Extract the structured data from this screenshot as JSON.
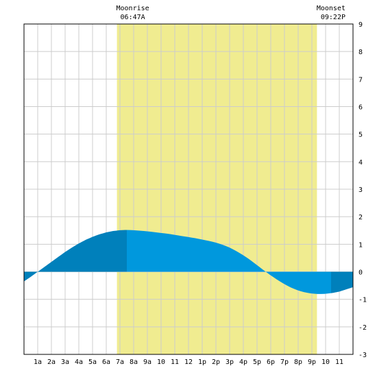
{
  "chart_data": {
    "type": "area",
    "xlabel": "",
    "ylabel": "",
    "x_tick_labels": [
      "1a",
      "2a",
      "3a",
      "4a",
      "5a",
      "6a",
      "7a",
      "8a",
      "9a",
      "10",
      "11",
      "12",
      "1p",
      "2p",
      "3p",
      "4p",
      "5p",
      "6p",
      "7p",
      "8p",
      "9p",
      "10",
      "11"
    ],
    "ylim": [
      -3,
      9
    ],
    "y_ticks": [
      -3,
      -2,
      -1,
      0,
      1,
      2,
      3,
      4,
      5,
      6,
      7,
      8,
      9
    ],
    "grid": true,
    "moon_events": [
      {
        "name": "Moonrise",
        "time": "06:47A",
        "hour": 6.78
      },
      {
        "name": "Moonset",
        "time": "09:22P",
        "hour": 21.37
      }
    ],
    "moon_visible_window": [
      6.78,
      21.37
    ],
    "tide_extremes": [
      {
        "hour": 7.5,
        "height": 1.5,
        "type": "high"
      },
      {
        "hour": 22.4,
        "height": -0.8,
        "type": "low"
      }
    ],
    "series": [
      {
        "x": [
          0,
          0.5,
          1,
          1.5,
          2,
          2.5,
          3,
          3.5,
          4,
          4.5,
          5,
          5.5,
          6,
          6.5,
          7,
          7.5,
          8,
          8.5,
          9,
          9.5,
          10,
          10.5,
          11,
          11.5,
          12,
          12.5,
          13,
          13.5,
          14,
          14.5,
          15,
          15.5,
          16,
          16.5,
          17,
          17.5,
          18,
          18.5,
          19,
          19.5,
          20,
          20.5,
          21,
          21.5,
          22,
          22.5,
          23,
          23.5
        ],
        "y": [
          -0.35,
          -0.18,
          0.0,
          0.18,
          0.36,
          0.54,
          0.72,
          0.88,
          1.03,
          1.16,
          1.27,
          1.36,
          1.43,
          1.48,
          1.51,
          1.52,
          1.51,
          1.49,
          1.47,
          1.44,
          1.41,
          1.38,
          1.34,
          1.3,
          1.26,
          1.22,
          1.17,
          1.12,
          1.06,
          0.98,
          0.88,
          0.75,
          0.6,
          0.43,
          0.24,
          0.05,
          -0.13,
          -0.3,
          -0.45,
          -0.58,
          -0.68,
          -0.75,
          -0.79,
          -0.81,
          -0.8,
          -0.77,
          -0.72,
          -0.64
        ]
      }
    ],
    "colors": {
      "tide_dark": "#0080bb",
      "tide_light": "#0098dd",
      "moon_band": "#f0ec90",
      "grid": "#cccccc",
      "border": "#000000"
    }
  }
}
